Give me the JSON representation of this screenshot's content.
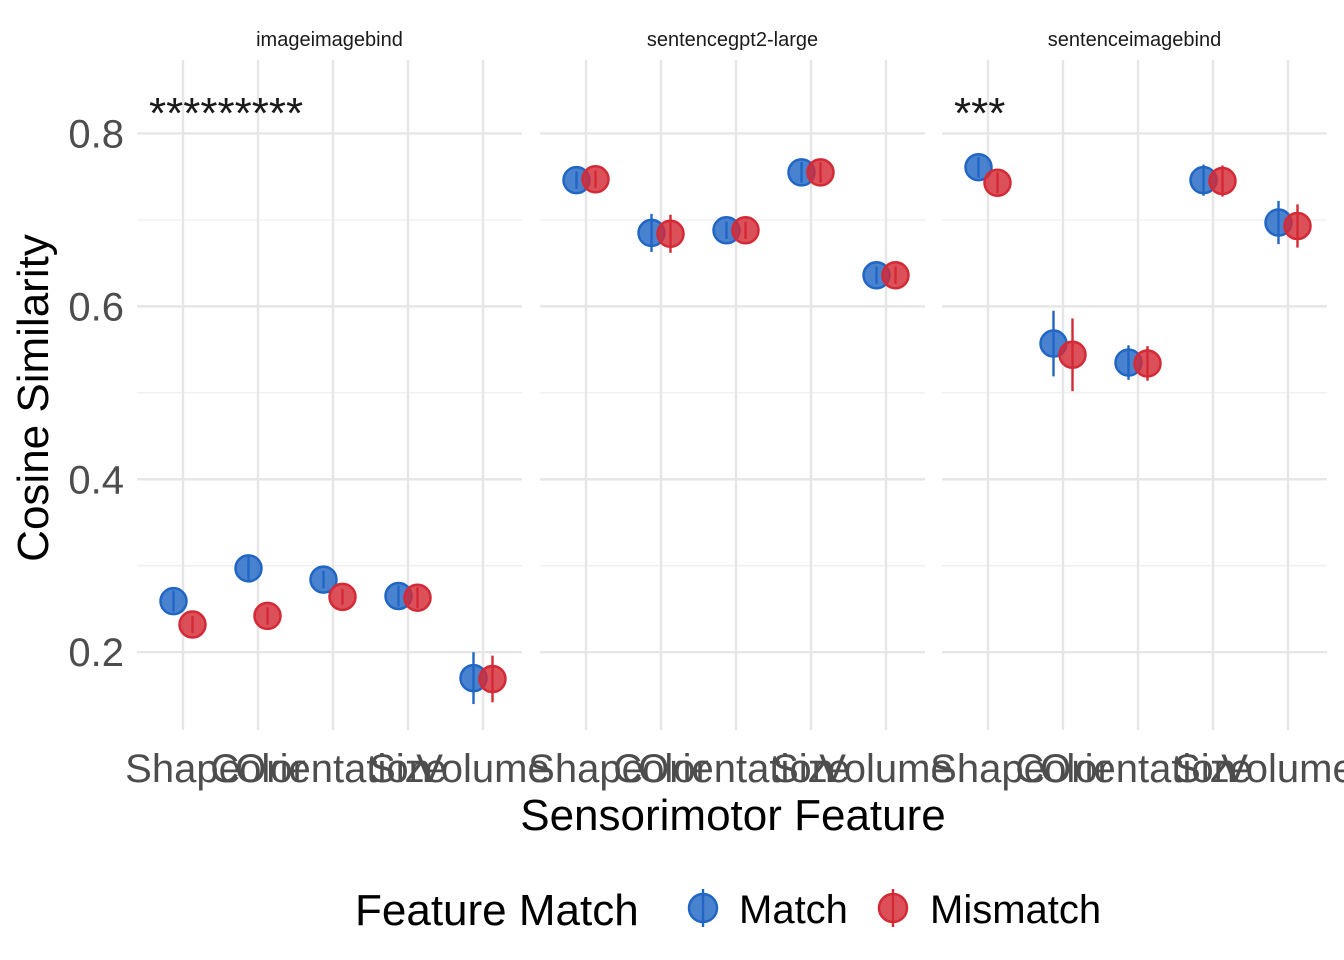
{
  "chart_data": {
    "type": "scatter",
    "xlabel": "Sensorimotor Feature",
    "ylabel": "Cosine Similarity",
    "ylim": [
      0.11,
      0.885
    ],
    "yticks": [
      0.2,
      0.4,
      0.6,
      0.8
    ],
    "grid": true,
    "legend": {
      "title": "Feature Match",
      "position": "bottom"
    },
    "categories": [
      "Shape",
      "Color",
      "Orientation",
      "Size",
      "Volume"
    ],
    "series": [
      {
        "name": "Match",
        "color": "#2166c4"
      },
      {
        "name": "Mismatch",
        "color": "#d42a36"
      }
    ],
    "panels": [
      {
        "title": "imageimagebind",
        "significance": "*********",
        "match": {
          "values": [
            0.259,
            0.297,
            0.284,
            0.265,
            0.17
          ],
          "err": [
            0.012,
            0.014,
            0.01,
            0.012,
            0.03
          ]
        },
        "mismatch": {
          "values": [
            0.232,
            0.242,
            0.264,
            0.263,
            0.169
          ],
          "err": [
            0.01,
            0.01,
            0.009,
            0.012,
            0.027
          ]
        }
      },
      {
        "title": "sentencegpt2-large",
        "significance": "",
        "match": {
          "values": [
            0.746,
            0.685,
            0.688,
            0.755,
            0.636
          ],
          "err": [
            0.01,
            0.022,
            0.01,
            0.012,
            0.01
          ]
        },
        "mismatch": {
          "values": [
            0.747,
            0.684,
            0.688,
            0.755,
            0.636
          ],
          "err": [
            0.01,
            0.022,
            0.01,
            0.012,
            0.01
          ]
        }
      },
      {
        "title": "sentenceimagebind",
        "significance": "***",
        "match": {
          "values": [
            0.761,
            0.557,
            0.535,
            0.746,
            0.697
          ],
          "err": [
            0.012,
            0.038,
            0.02,
            0.018,
            0.025
          ]
        },
        "mismatch": {
          "values": [
            0.743,
            0.544,
            0.534,
            0.745,
            0.693
          ],
          "err": [
            0.012,
            0.042,
            0.02,
            0.018,
            0.025
          ]
        }
      }
    ]
  }
}
